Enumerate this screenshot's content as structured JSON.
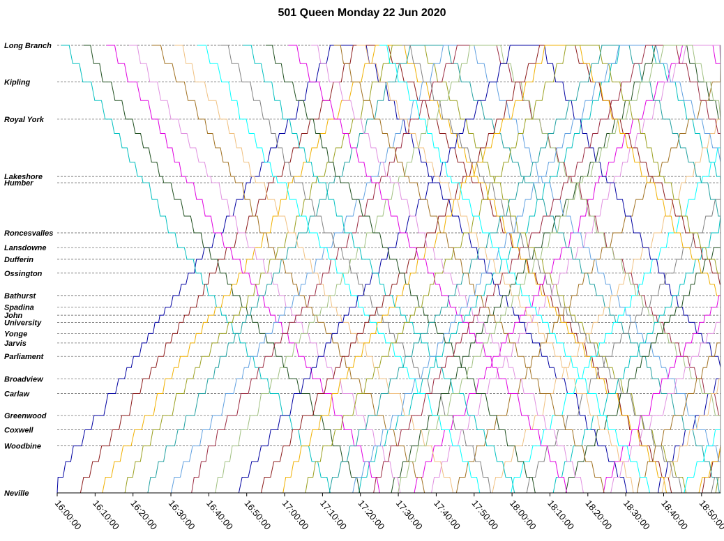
{
  "chart_data": {
    "type": "line",
    "title": "501 Queen Monday  22 Jun 2020",
    "xlabel": "",
    "ylabel": "",
    "x_range": [
      "16:00:00",
      "18:55:00"
    ],
    "x_ticks": [
      "16:00:00",
      "16:10:00",
      "16:20:00",
      "16:30:00",
      "16:40:00",
      "16:50:00",
      "17:00:00",
      "17:10:00",
      "17:20:00",
      "17:30:00",
      "17:40:00",
      "17:50:00",
      "18:00:00",
      "18:10:00",
      "18:20:00",
      "18:30:00",
      "18:40:00",
      "18:50:00"
    ],
    "stops": [
      {
        "name": "Long Branch",
        "pos": 0.0
      },
      {
        "name": "Kipling",
        "pos": 0.082
      },
      {
        "name": "Royal York",
        "pos": 0.165
      },
      {
        "name": "Lakeshore",
        "pos": 0.293
      },
      {
        "name": "Humber",
        "pos": 0.307
      },
      {
        "name": "Roncesvalles",
        "pos": 0.419
      },
      {
        "name": "Lansdowne",
        "pos": 0.452
      },
      {
        "name": "Dufferin",
        "pos": 0.478
      },
      {
        "name": "Ossington",
        "pos": 0.509
      },
      {
        "name": "Bathurst",
        "pos": 0.559
      },
      {
        "name": "Spadina",
        "pos": 0.585
      },
      {
        "name": "John",
        "pos": 0.603
      },
      {
        "name": "University",
        "pos": 0.619
      },
      {
        "name": "Yonge",
        "pos": 0.644
      },
      {
        "name": "Jarvis",
        "pos": 0.665
      },
      {
        "name": "Parliament",
        "pos": 0.695
      },
      {
        "name": "Broadview",
        "pos": 0.745
      },
      {
        "name": "Carlaw",
        "pos": 0.778
      },
      {
        "name": "Greenwood",
        "pos": 0.827
      },
      {
        "name": "Coxwell",
        "pos": 0.859
      },
      {
        "name": "Woodbine",
        "pos": 0.895
      },
      {
        "name": "Neville",
        "pos": 1.0
      }
    ],
    "series_colors": [
      "#0000a0",
      "#00bfbf",
      "#8b1a1a",
      "#1f4f1f",
      "#f0b000",
      "#e000e0",
      "#9aa020",
      "#e090e0",
      "#20a0a0",
      "#a07020",
      "#60a0e0",
      "#f0c080",
      "#9a2a40",
      "#00ffff",
      "#a0c080",
      "#808080"
    ],
    "series": [
      {
        "start": "15:58",
        "dir": "up",
        "trips": 3
      },
      {
        "start": "16:01",
        "dir": "down",
        "trips": 3
      },
      {
        "start": "16:04",
        "dir": "up",
        "trips": 3
      },
      {
        "start": "16:07",
        "dir": "down",
        "trips": 3
      },
      {
        "start": "16:10",
        "dir": "up",
        "trips": 3
      },
      {
        "start": "16:13",
        "dir": "down",
        "trips": 3
      },
      {
        "start": "16:16",
        "dir": "up",
        "trips": 3
      },
      {
        "start": "16:19",
        "dir": "down",
        "trips": 3
      },
      {
        "start": "16:22",
        "dir": "up",
        "trips": 3
      },
      {
        "start": "16:25",
        "dir": "down",
        "trips": 3
      },
      {
        "start": "16:28",
        "dir": "up",
        "trips": 3
      },
      {
        "start": "16:31",
        "dir": "down",
        "trips": 3
      },
      {
        "start": "16:34",
        "dir": "up",
        "trips": 3
      },
      {
        "start": "16:37",
        "dir": "down",
        "trips": 3
      },
      {
        "start": "16:40",
        "dir": "up",
        "trips": 3
      },
      {
        "start": "16:43",
        "dir": "down",
        "trips": 3
      },
      {
        "start": "16:46",
        "dir": "up",
        "trips": 3
      },
      {
        "start": "16:49",
        "dir": "down",
        "trips": 3
      },
      {
        "start": "16:52",
        "dir": "up",
        "trips": 3
      },
      {
        "start": "16:55",
        "dir": "down",
        "trips": 3
      },
      {
        "start": "16:58",
        "dir": "up",
        "trips": 3
      },
      {
        "start": "17:01",
        "dir": "down",
        "trips": 3
      },
      {
        "start": "17:04",
        "dir": "up",
        "trips": 3
      },
      {
        "start": "17:07",
        "dir": "down",
        "trips": 3
      },
      {
        "start": "17:10",
        "dir": "up",
        "trips": 3
      },
      {
        "start": "17:13",
        "dir": "down",
        "trips": 3
      },
      {
        "start": "17:16",
        "dir": "up",
        "trips": 3
      },
      {
        "start": "17:19",
        "dir": "down",
        "trips": 3
      },
      {
        "start": "17:22",
        "dir": "up",
        "trips": 3
      },
      {
        "start": "17:25",
        "dir": "down",
        "trips": 3
      },
      {
        "start": "17:28",
        "dir": "up",
        "trips": 3
      },
      {
        "start": "17:31",
        "dir": "down",
        "trips": 3
      }
    ],
    "grid": true,
    "legend": "none"
  }
}
